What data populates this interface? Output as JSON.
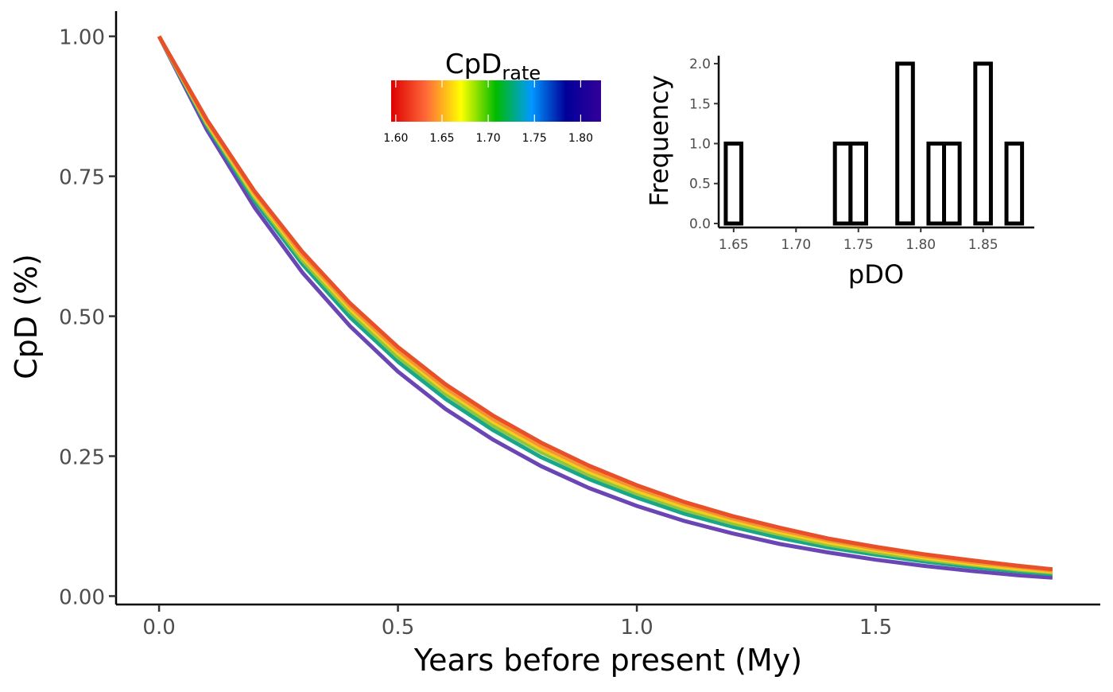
{
  "chart_data": [
    {
      "type": "line",
      "xlabel": "Years before present (My)",
      "ylabel": "CpD (%)",
      "xlim": [
        -0.09,
        1.97
      ],
      "ylim": [
        -0.015,
        1.045
      ],
      "xticks": [
        0.0,
        0.5,
        1.0,
        1.5
      ],
      "xtick_labels": [
        "0.0",
        "0.5",
        "1.0",
        "1.5"
      ],
      "yticks": [
        0.0,
        0.25,
        0.5,
        0.75,
        1.0
      ],
      "ytick_labels": [
        "0.00",
        "0.25",
        "0.50",
        "0.75",
        "1.00"
      ],
      "grid": false,
      "color_by": "CpD_rate",
      "series": [
        {
          "rate": 1.825,
          "color": "#6a46b4",
          "x": [
            0,
            0.1,
            0.2,
            0.3,
            0.4,
            0.5,
            0.6,
            0.7,
            0.8,
            0.9,
            1.0,
            1.1,
            1.2,
            1.3,
            1.4,
            1.5,
            1.6,
            1.7,
            1.8,
            1.87
          ],
          "y": [
            1.0,
            0.833,
            0.694,
            0.578,
            0.482,
            0.401,
            0.334,
            0.279,
            0.232,
            0.193,
            0.161,
            0.134,
            0.112,
            0.093,
            0.078,
            0.065,
            0.054,
            0.045,
            0.037,
            0.033
          ]
        },
        {
          "rate": 1.74,
          "color": "#1aa68a",
          "x": [
            0,
            0.1,
            0.2,
            0.3,
            0.4,
            0.5,
            0.6,
            0.7,
            0.8,
            0.9,
            1.0,
            1.1,
            1.2,
            1.3,
            1.4,
            1.5,
            1.6,
            1.7,
            1.8,
            1.87
          ],
          "y": [
            1.0,
            0.84,
            0.706,
            0.593,
            0.498,
            0.419,
            0.352,
            0.296,
            0.248,
            0.209,
            0.176,
            0.147,
            0.124,
            0.104,
            0.087,
            0.074,
            0.062,
            0.052,
            0.044,
            0.039
          ]
        },
        {
          "rate": 1.7,
          "color": "#8ec63f",
          "x": [
            0,
            0.1,
            0.2,
            0.3,
            0.4,
            0.5,
            0.6,
            0.7,
            0.8,
            0.9,
            1.0,
            1.1,
            1.2,
            1.3,
            1.4,
            1.5,
            1.6,
            1.7,
            1.8,
            1.87
          ],
          "y": [
            1.0,
            0.844,
            0.712,
            0.6,
            0.507,
            0.427,
            0.361,
            0.304,
            0.257,
            0.216,
            0.183,
            0.154,
            0.13,
            0.11,
            0.092,
            0.078,
            0.066,
            0.056,
            0.047,
            0.042
          ]
        },
        {
          "rate": 1.67,
          "color": "#f2cf1f",
          "x": [
            0,
            0.1,
            0.2,
            0.3,
            0.4,
            0.5,
            0.6,
            0.7,
            0.8,
            0.9,
            1.0,
            1.1,
            1.2,
            1.3,
            1.4,
            1.5,
            1.6,
            1.7,
            1.8,
            1.87
          ],
          "y": [
            1.0,
            0.846,
            0.716,
            0.606,
            0.513,
            0.434,
            0.367,
            0.311,
            0.263,
            0.222,
            0.188,
            0.159,
            0.135,
            0.114,
            0.096,
            0.082,
            0.069,
            0.058,
            0.049,
            0.044
          ]
        },
        {
          "rate": 1.645,
          "color": "#f59432",
          "x": [
            0,
            0.1,
            0.2,
            0.3,
            0.4,
            0.5,
            0.6,
            0.7,
            0.8,
            0.9,
            1.0,
            1.1,
            1.2,
            1.3,
            1.4,
            1.5,
            1.6,
            1.7,
            1.8,
            1.87
          ],
          "y": [
            1.0,
            0.848,
            0.72,
            0.61,
            0.518,
            0.439,
            0.372,
            0.316,
            0.268,
            0.227,
            0.193,
            0.164,
            0.139,
            0.118,
            0.1,
            0.085,
            0.072,
            0.061,
            0.052,
            0.046
          ]
        },
        {
          "rate": 1.62,
          "color": "#e8502a",
          "x": [
            0,
            0.1,
            0.2,
            0.3,
            0.4,
            0.5,
            0.6,
            0.7,
            0.8,
            0.9,
            1.0,
            1.1,
            1.2,
            1.3,
            1.4,
            1.5,
            1.6,
            1.7,
            1.8,
            1.87
          ],
          "y": [
            1.0,
            0.851,
            0.723,
            0.615,
            0.523,
            0.445,
            0.378,
            0.322,
            0.274,
            0.233,
            0.198,
            0.168,
            0.143,
            0.122,
            0.103,
            0.088,
            0.075,
            0.064,
            0.054,
            0.048
          ]
        }
      ]
    },
    {
      "type": "histogram",
      "xlabel": "pDO",
      "ylabel": "Frequency",
      "xlim": [
        1.638,
        1.891
      ],
      "ylim": [
        -0.05,
        2.1
      ],
      "xticks": [
        1.65,
        1.7,
        1.75,
        1.8,
        1.85
      ],
      "xtick_labels": [
        "1.65",
        "1.70",
        "1.75",
        "1.80",
        "1.85"
      ],
      "yticks": [
        0.0,
        0.5,
        1.0,
        1.5,
        2.0
      ],
      "ytick_labels": [
        "0.0",
        "0.5",
        "1.0",
        "1.5",
        "2.0"
      ],
      "grid": false,
      "bin_width": 0.0125,
      "bin_starts": [
        1.6437,
        1.6562,
        1.6687,
        1.6812,
        1.6937,
        1.7062,
        1.7187,
        1.7312,
        1.7437,
        1.7562,
        1.7687,
        1.7812,
        1.7937,
        1.8062,
        1.8187,
        1.8312,
        1.8437,
        1.8562,
        1.8687
      ],
      "counts": [
        1,
        0,
        0,
        0,
        0,
        0,
        0,
        1,
        1,
        0,
        0,
        2,
        0,
        1,
        1,
        0,
        2,
        0,
        1
      ]
    }
  ],
  "legend": {
    "title": "CpD",
    "title_subscript": "rate",
    "range": [
      1.595,
      1.822
    ],
    "ticks": [
      1.6,
      1.65,
      1.7,
      1.75,
      1.8
    ],
    "tick_labels": [
      "1.60",
      "1.65",
      "1.70",
      "1.75",
      "1.80"
    ],
    "colors": [
      "#dd0000",
      "#ff6a3a",
      "#ffff00",
      "#00bb00",
      "#0099ff",
      "#000099",
      "#330099"
    ],
    "placement": "top-center"
  }
}
